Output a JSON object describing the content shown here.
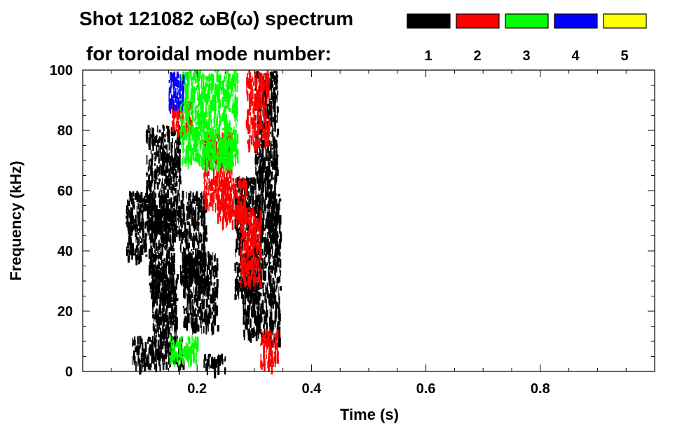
{
  "chart_data": {
    "type": "heatmap",
    "title_line1": "Shot 121082 ωB(ω) spectrum",
    "title_line2": "for toroidal mode number:",
    "xlabel": "Time (s)",
    "ylabel": "Frequency (kHz)",
    "xlim": [
      0.0,
      1.0
    ],
    "ylim": [
      0,
      100
    ],
    "x_ticks": [
      {
        "value": 0.2,
        "label": "0.2"
      },
      {
        "value": 0.4,
        "label": "0.4"
      },
      {
        "value": 0.6,
        "label": "0.6"
      },
      {
        "value": 0.8,
        "label": "0.8"
      }
    ],
    "y_ticks": [
      {
        "value": 0,
        "label": "0"
      },
      {
        "value": 20,
        "label": "20"
      },
      {
        "value": 40,
        "label": "40"
      },
      {
        "value": 60,
        "label": "60"
      },
      {
        "value": 80,
        "label": "80"
      },
      {
        "value": 100,
        "label": "100"
      }
    ],
    "legend": [
      {
        "mode": "1",
        "color": "#000000"
      },
      {
        "mode": "2",
        "color": "#ff0000"
      },
      {
        "mode": "3",
        "color": "#00ff00"
      },
      {
        "mode": "4",
        "color": "#0000ff"
      },
      {
        "mode": "5",
        "color": "#ffff00"
      }
    ],
    "series": [
      {
        "mode": "1",
        "color": "#000000",
        "regions": [
          {
            "t": [
              0.075,
              0.11
            ],
            "f": [
              38,
              60
            ]
          },
          {
            "t": [
              0.11,
              0.17
            ],
            "f": [
              45,
              82
            ]
          },
          {
            "t": [
              0.115,
              0.16
            ],
            "f": [
              25,
              55
            ]
          },
          {
            "t": [
              0.12,
              0.165
            ],
            "f": [
              12,
              35
            ]
          },
          {
            "t": [
              0.17,
              0.215
            ],
            "f": [
              30,
              60
            ]
          },
          {
            "t": [
              0.175,
              0.235
            ],
            "f": [
              15,
              40
            ]
          },
          {
            "t": [
              0.265,
              0.3
            ],
            "f": [
              25,
              65
            ]
          },
          {
            "t": [
              0.28,
              0.325
            ],
            "f": [
              12,
              40
            ]
          },
          {
            "t": [
              0.3,
              0.34
            ],
            "f": [
              40,
              100
            ]
          },
          {
            "t": [
              0.325,
              0.345
            ],
            "f": [
              10,
              60
            ]
          },
          {
            "t": [
              0.085,
              0.175
            ],
            "f": [
              2,
              12
            ]
          },
          {
            "t": [
              0.21,
              0.25
            ],
            "f": [
              1,
              6
            ]
          }
        ]
      },
      {
        "mode": "2",
        "color": "#ff0000",
        "regions": [
          {
            "t": [
              0.285,
              0.325
            ],
            "f": [
              75,
              100
            ]
          },
          {
            "t": [
              0.21,
              0.26
            ],
            "f": [
              55,
              80
            ]
          },
          {
            "t": [
              0.235,
              0.285
            ],
            "f": [
              50,
              65
            ]
          },
          {
            "t": [
              0.275,
              0.31
            ],
            "f": [
              30,
              55
            ]
          },
          {
            "t": [
              0.155,
              0.19
            ],
            "f": [
              80,
              90
            ]
          },
          {
            "t": [
              0.31,
              0.34
            ],
            "f": [
              2,
              14
            ]
          }
        ]
      },
      {
        "mode": "3",
        "color": "#00ff00",
        "regions": [
          {
            "t": [
              0.17,
              0.27
            ],
            "f": [
              70,
              100
            ]
          },
          {
            "t": [
              0.215,
              0.265
            ],
            "f": [
              68,
              78
            ]
          },
          {
            "t": [
              0.15,
              0.2
            ],
            "f": [
              4,
              12
            ]
          }
        ]
      },
      {
        "mode": "4",
        "color": "#0000ff",
        "regions": [
          {
            "t": [
              0.15,
              0.175
            ],
            "f": [
              88,
              100
            ]
          }
        ]
      }
    ]
  }
}
